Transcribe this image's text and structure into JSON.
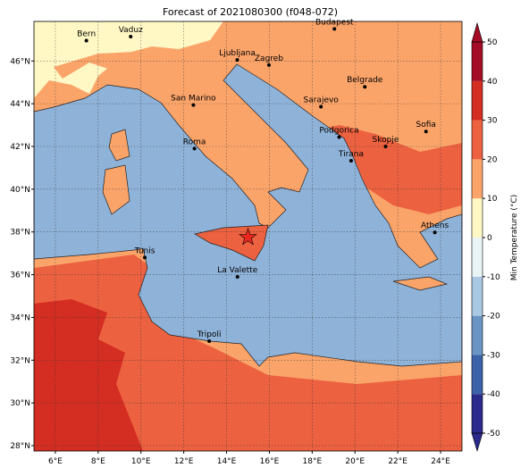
{
  "title": "Forecast of 2021080300 (f048-072)",
  "map": {
    "xlim": [
      5,
      25
    ],
    "ylim": [
      27.75,
      47.85
    ],
    "xticks": [
      {
        "value": 6,
        "label": "6°E"
      },
      {
        "value": 8,
        "label": "8°E"
      },
      {
        "value": 10,
        "label": "10°E"
      },
      {
        "value": 12,
        "label": "12°E"
      },
      {
        "value": 14,
        "label": "14°E"
      },
      {
        "value": 16,
        "label": "16°E"
      },
      {
        "value": 18,
        "label": "18°E"
      },
      {
        "value": 20,
        "label": "20°E"
      },
      {
        "value": 22,
        "label": "22°E"
      },
      {
        "value": 24,
        "label": "24°E"
      }
    ],
    "yticks": [
      {
        "value": 28,
        "label": "28°N"
      },
      {
        "value": 30,
        "label": "30°N"
      },
      {
        "value": 32,
        "label": "32°N"
      },
      {
        "value": 34,
        "label": "34°N"
      },
      {
        "value": 36,
        "label": "36°N"
      },
      {
        "value": 38,
        "label": "38°N"
      },
      {
        "value": 40,
        "label": "40°N"
      },
      {
        "value": 42,
        "label": "42°N"
      },
      {
        "value": 44,
        "label": "44°N"
      },
      {
        "value": 46,
        "label": "46°N"
      }
    ],
    "grid": true,
    "cities": [
      {
        "name": "Bern",
        "lon": 7.45,
        "lat": 46.95
      },
      {
        "name": "Vaduz",
        "lon": 9.52,
        "lat": 47.14
      },
      {
        "name": "Budapest",
        "lon": 19.04,
        "lat": 47.5
      },
      {
        "name": "Ljubljana",
        "lon": 14.5,
        "lat": 46.05
      },
      {
        "name": "Zagreb",
        "lon": 15.98,
        "lat": 45.81
      },
      {
        "name": "San Marino",
        "lon": 12.45,
        "lat": 43.94
      },
      {
        "name": "Belgrade",
        "lon": 20.46,
        "lat": 44.79
      },
      {
        "name": "Sarajevo",
        "lon": 18.41,
        "lat": 43.86
      },
      {
        "name": "Sofia",
        "lon": 23.32,
        "lat": 42.7
      },
      {
        "name": "Roma",
        "lon": 12.5,
        "lat": 41.9
      },
      {
        "name": "Podgorica",
        "lon": 19.26,
        "lat": 42.44
      },
      {
        "name": "Skopje",
        "lon": 21.43,
        "lat": 42.0
      },
      {
        "name": "Tirana",
        "lon": 19.82,
        "lat": 41.33
      },
      {
        "name": "Athens",
        "lon": 23.73,
        "lat": 37.98
      },
      {
        "name": "Tunis",
        "lon": 10.18,
        "lat": 36.8
      },
      {
        "name": "La Valette",
        "lon": 14.51,
        "lat": 35.9
      },
      {
        "name": "Tripoli",
        "lon": 13.19,
        "lat": 32.89
      }
    ],
    "marker": {
      "lon": 15.0,
      "lat": 37.75,
      "color": "#e8281e"
    }
  },
  "colorbar": {
    "label": "Min Temperature (°C)",
    "ylim": [
      -50,
      50
    ],
    "yticks": [
      -50,
      -40,
      -30,
      -20,
      -10,
      0,
      10,
      20,
      30,
      40,
      50
    ],
    "colors": [
      "#2a2a8c",
      "#3b62a8",
      "#6a94c4",
      "#a9c9e2",
      "#e8f4f6",
      "#fff8c4",
      "#fba46a",
      "#ec6140",
      "#d42d22",
      "#a30b26"
    ]
  }
}
